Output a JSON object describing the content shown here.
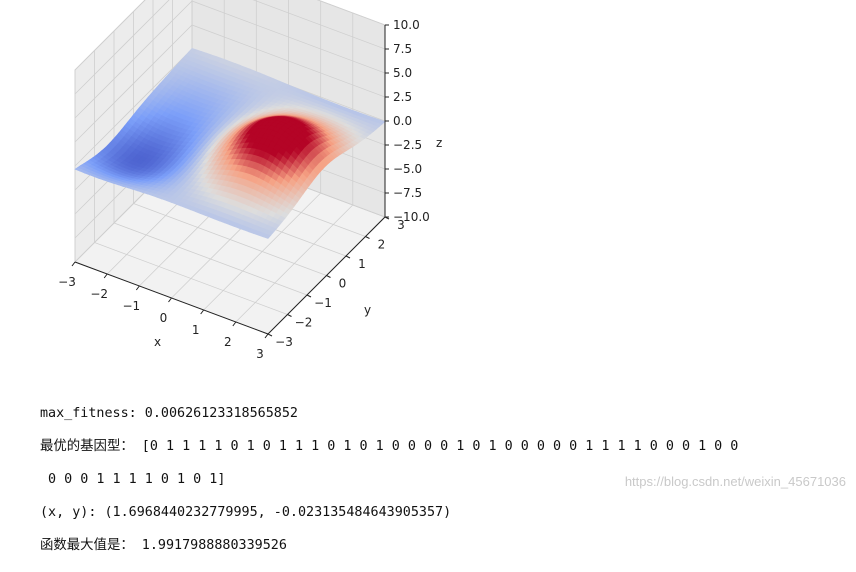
{
  "chart_data": {
    "type": "surface3d",
    "title": "",
    "colormap": "coolwarm",
    "xlabel": "x",
    "ylabel": "y",
    "zlabel": "z",
    "xlim": [
      -3,
      3
    ],
    "ylim": [
      -3,
      3
    ],
    "zlim": [
      -10,
      10
    ],
    "x_ticks": [
      "−3",
      "−2",
      "−1",
      "0",
      "1",
      "2",
      "3"
    ],
    "y_ticks": [
      "−3",
      "−2",
      "−1",
      "0",
      "1",
      "2",
      "3"
    ],
    "z_ticks": [
      "−10.0",
      "−7.5",
      "−5.0",
      "−2.5",
      "0.0",
      "2.5",
      "5.0",
      "7.5",
      "10.0"
    ],
    "grid": true
  },
  "console": {
    "line1": "max_fitness: 0.00626123318565852",
    "line2": "最优的基因型： [0 1 1 1 1 0 1 0 1 1 1 0 1 0 1 0 0 0 0 1 0 1 0 0 0 0 0 1 1 1 1 0 0 0 1 0 0",
    "line3": " 0 0 0 1 1 1 1 0 1 0 1]",
    "line4": "(x, y): (1.6968440232779995, -0.023135484643905357)",
    "line5": "函数最大值是： 1.9917988880339526"
  },
  "watermark": "https://blog.csdn.net/weixin_45671036"
}
